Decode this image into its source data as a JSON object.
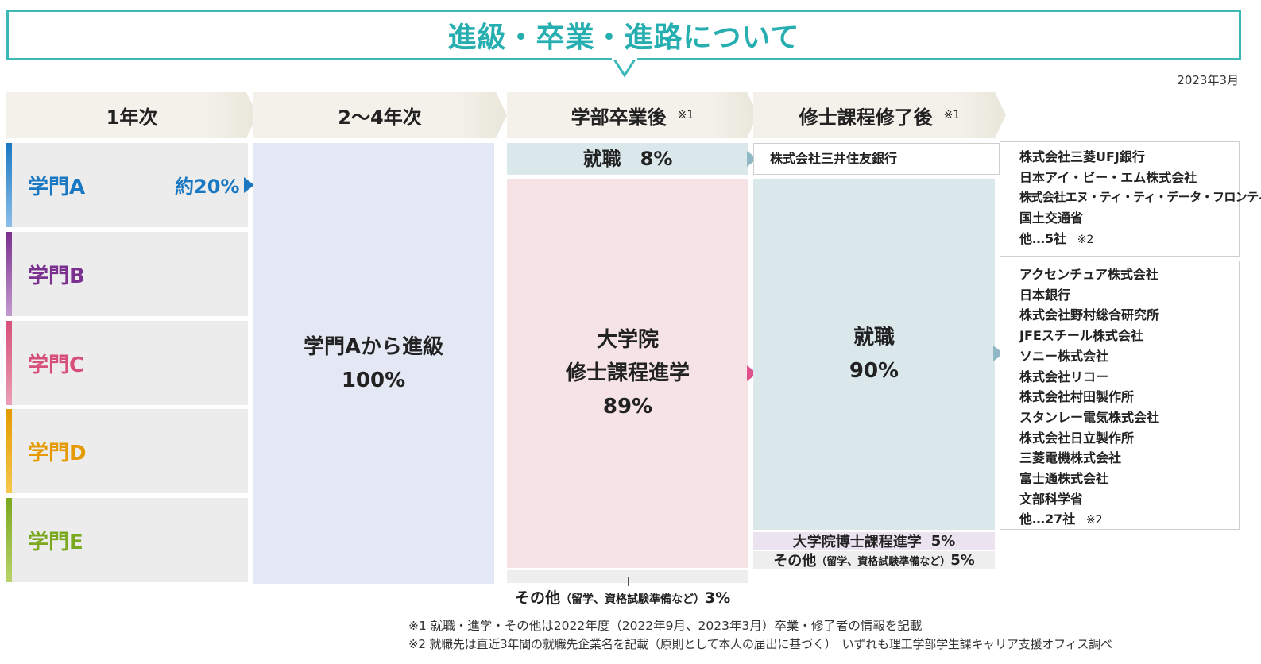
{
  "title": "進級・卒業・進路について",
  "date": "2023年3月",
  "headers": {
    "year1": "1年次",
    "year2_4": "2〜4年次",
    "after_undergrad": "学部卒業後",
    "after_undergrad_note": "※1",
    "after_master": "修士課程修了後",
    "after_master_note": "※1"
  },
  "gakumon": [
    {
      "label": "学門A",
      "color": "#1a78c2"
    },
    {
      "label": "学門B",
      "color": "#7b2f8e"
    },
    {
      "label": "学門C",
      "color": "#d6507a"
    },
    {
      "label": "学門D",
      "color": "#e49a00"
    },
    {
      "label": "学門E",
      "color": "#7aa81f"
    }
  ],
  "gakumon_a_pct": "約20%",
  "promotion": {
    "line1": "学門Aから進級",
    "line2": "100%"
  },
  "undergrad": {
    "employment": "就職　8%",
    "grad_line1": "大学院",
    "grad_line2": "修士課程進学",
    "grad_pct": "89%",
    "other_main": "その他",
    "other_detail": "（留学、資格試験準備など）",
    "other_pct": "3%"
  },
  "undergrad_company": "株式会社三井住友銀行",
  "master": {
    "employment": "就職",
    "employment_pct": "90%",
    "doctor": "大学院博士課程進学",
    "doctor_pct": "5%",
    "other_main": "その他",
    "other_detail": "（留学、資格試験準備など）",
    "other_pct": "5%"
  },
  "companies_top": [
    "株式会社三菱UFJ銀行",
    "日本アイ・ビー・エム株式会社",
    "株式会社エヌ・ティ・ティ・データ・フロンティア",
    "国土交通省"
  ],
  "companies_top_other": "他…5社",
  "companies_top_note": "※2",
  "companies_bottom": [
    "アクセンチュア株式会社",
    "日本銀行",
    "株式会社野村総合研究所",
    "JFEスチール株式会社",
    "ソニー株式会社",
    "株式会社リコー",
    "株式会社村田製作所",
    "スタンレー電気株式会社",
    "株式会社日立製作所",
    "三菱電機株式会社",
    "富士通株式会社",
    "文部科学省"
  ],
  "companies_bottom_other": "他…27社",
  "companies_bottom_note": "※2",
  "footnotes": [
    "※1 就職・進学・その他は2022年度（2022年9月、2023年3月）卒業・修了者の情報を記載",
    "※2 就職先は直近3年間の就職先企業名を記載（原則として本人の届出に基づく）　いずれも理工学部学生課キャリア支援オフィス調べ"
  ],
  "colors": {
    "accent": "#27aeb0",
    "employment_bg": "#dae8ec",
    "grad_bg": "#f5e3e6",
    "promotion_bg": "#e3e8f4",
    "doctor_bg": "#ece3f0",
    "other_bg": "#eeeeee"
  }
}
